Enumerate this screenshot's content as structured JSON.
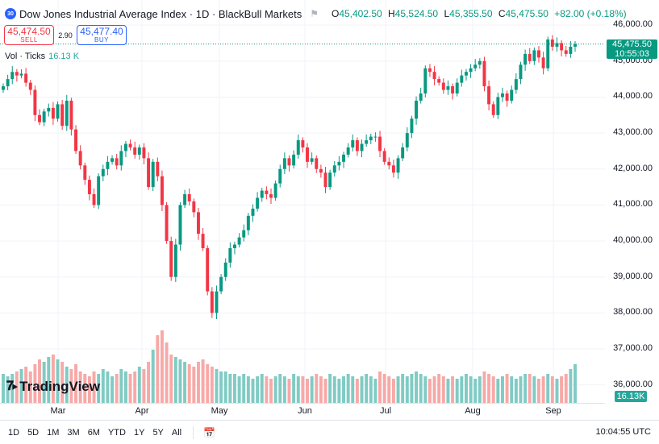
{
  "header": {
    "symbol_badge": "30",
    "title": "Dow Jones Industrial Average Index · 1D · BlackBull Markets",
    "flag_icon": "flag-icon",
    "ohlc": {
      "o_label": "O",
      "o": "45,402.50",
      "h_label": "H",
      "h": "45,524.50",
      "l_label": "L",
      "l": "45,355.50",
      "c_label": "C",
      "c": "45,475.50",
      "change": "+82.00 (+0.18%)"
    }
  },
  "trade": {
    "sell_price": "45,474.50",
    "sell_label": "SELL",
    "spread": "2.90",
    "buy_price": "45,477.40",
    "buy_label": "BUY"
  },
  "volume_legend": {
    "label": "Vol · Ticks",
    "value": "16.13 K"
  },
  "price_badge": {
    "price": "45,475.50",
    "countdown": "10:55:03"
  },
  "volume_badge": "16.13K",
  "brand": {
    "name": "TradingView"
  },
  "price_scale": [
    "46,000.00",
    "45,000.00",
    "44,000.00",
    "43,000.00",
    "42,000.00",
    "41,000.00",
    "40,000.00",
    "39,000.00",
    "38,000.00",
    "37,000.00",
    "36,000.00"
  ],
  "time_scale": [
    "Mar",
    "Apr",
    "May",
    "Jun",
    "Jul",
    "Aug",
    "Sep"
  ],
  "ranges": [
    "1D",
    "5D",
    "1M",
    "3M",
    "6M",
    "YTD",
    "1Y",
    "5Y",
    "All"
  ],
  "clock": "10:04:55 UTC",
  "colors": {
    "up": "#089981",
    "down": "#f23645",
    "vol_up": "#80cbc4",
    "vol_down": "#f7a9a7"
  },
  "chart_data": {
    "type": "candlestick",
    "title": "Dow Jones Industrial Average Index · 1D",
    "ylim": [
      35500,
      46250
    ],
    "x_labels": [
      "Mar",
      "Apr",
      "May",
      "Jun",
      "Jul",
      "Aug",
      "Sep"
    ],
    "close": [
      44300,
      44500,
      44700,
      44600,
      44650,
      44400,
      44200,
      43500,
      43300,
      43600,
      43700,
      43400,
      43800,
      43200,
      43900,
      43100,
      42500,
      42100,
      41700,
      41300,
      41000,
      41800,
      42000,
      42200,
      42300,
      42100,
      42500,
      42700,
      42600,
      42400,
      42600,
      42300,
      41500,
      42200,
      41800,
      41000,
      40000,
      39000,
      39900,
      41000,
      41300,
      41100,
      40800,
      40200,
      39800,
      38600,
      38000,
      38600,
      39000,
      39400,
      39800,
      39900,
      40100,
      40300,
      40700,
      40900,
      41200,
      41400,
      41300,
      41200,
      41600,
      42000,
      42300,
      42100,
      42400,
      42800,
      42600,
      42200,
      42300,
      42000,
      41900,
      41500,
      41900,
      42100,
      42200,
      42400,
      42600,
      42800,
      42500,
      42700,
      42800,
      42900,
      42900,
      42500,
      42200,
      42100,
      41900,
      42300,
      42600,
      43000,
      43400,
      43900,
      44100,
      44800,
      44700,
      44500,
      44400,
      44200,
      44300,
      44100,
      44400,
      44600,
      44700,
      44800,
      44900,
      45000,
      44300,
      43800,
      43500,
      44000,
      44100,
      43900,
      44200,
      44500,
      44900,
      45200,
      45000,
      45300,
      45100,
      44800,
      45600,
      45400,
      45500,
      45300,
      45200,
      45400,
      45475
    ],
    "volume_ticks": [
      12,
      11,
      12,
      13,
      14,
      15,
      13,
      16,
      18,
      17,
      19,
      20,
      18,
      17,
      15,
      14,
      16,
      13,
      12,
      11,
      13,
      12,
      14,
      13,
      11,
      12,
      14,
      13,
      12,
      13,
      15,
      14,
      17,
      22,
      28,
      30,
      25,
      20,
      19,
      18,
      17,
      16,
      15,
      17,
      18,
      16,
      15,
      14,
      13,
      13,
      12,
      12,
      11,
      12,
      11,
      10,
      11,
      12,
      11,
      10,
      11,
      12,
      11,
      10,
      12,
      11,
      11,
      10,
      11,
      12,
      11,
      10,
      12,
      11,
      10,
      11,
      12,
      11,
      10,
      11,
      12,
      11,
      10,
      13,
      12,
      11,
      10,
      11,
      12,
      11,
      12,
      13,
      12,
      11,
      10,
      11,
      12,
      11,
      10,
      11,
      10,
      11,
      12,
      11,
      10,
      11,
      13,
      12,
      11,
      10,
      11,
      12,
      11,
      10,
      11,
      12,
      12,
      11,
      10,
      11,
      12,
      11,
      10,
      11,
      12,
      14,
      16
    ]
  }
}
